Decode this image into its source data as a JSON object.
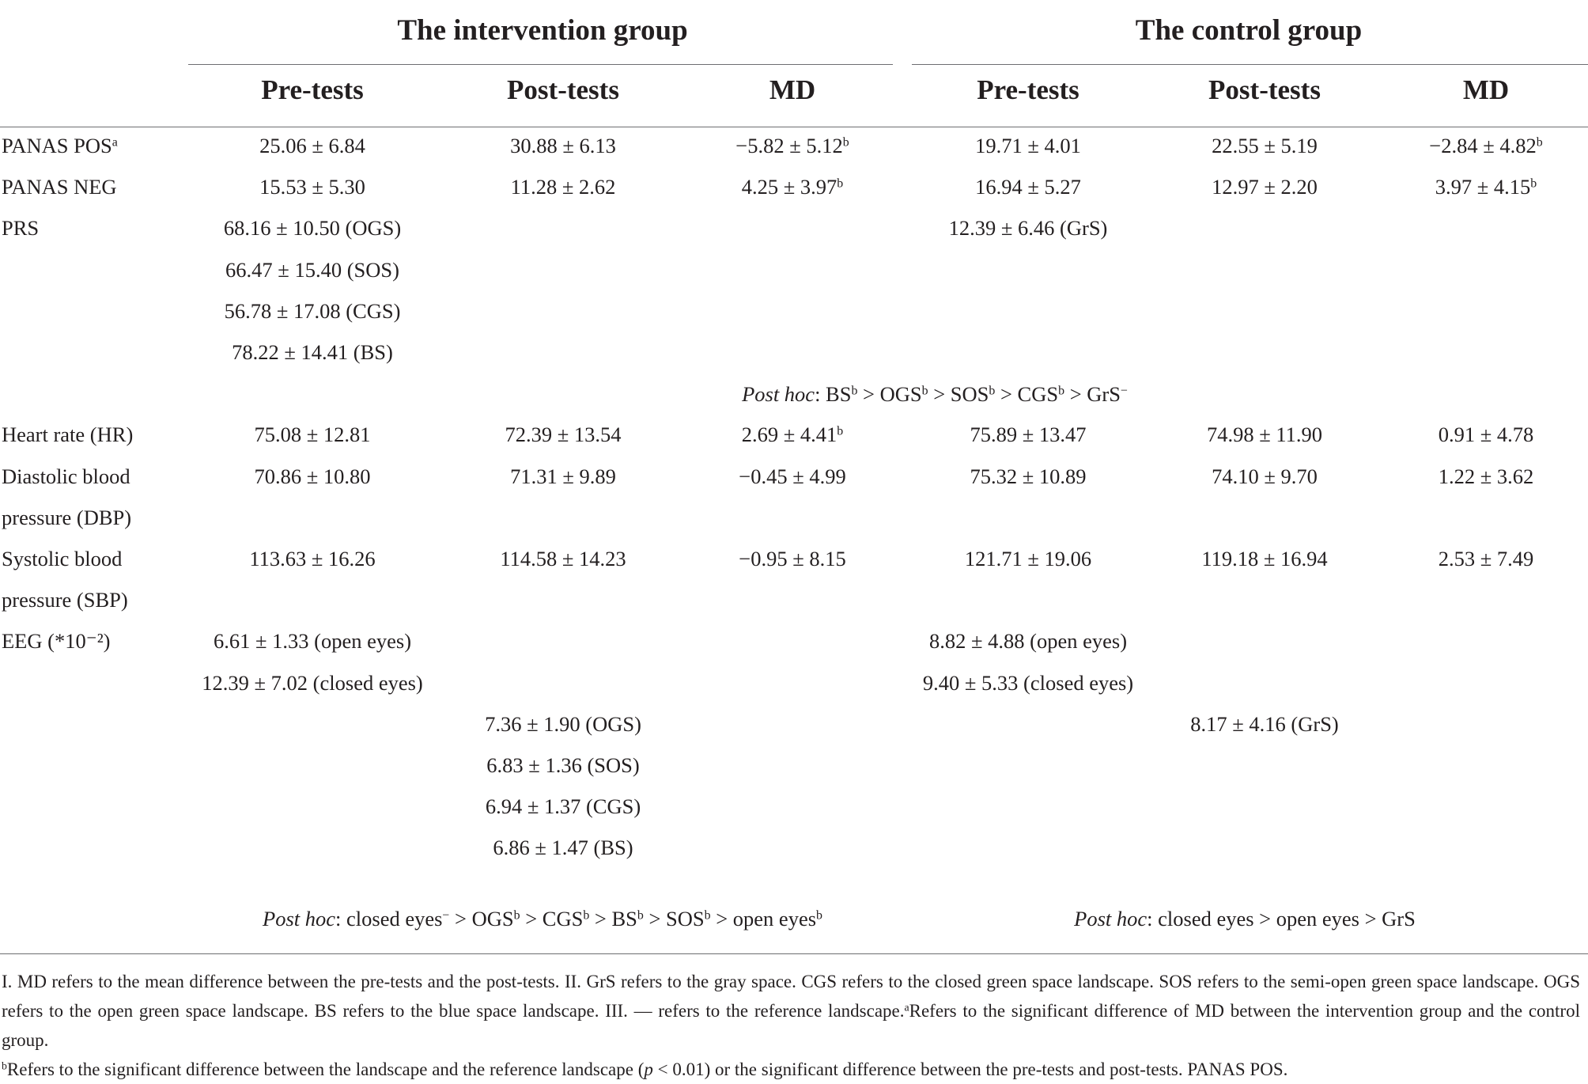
{
  "groups": {
    "intervention": "The intervention group",
    "control": "The control group"
  },
  "columns": {
    "pre": "Pre-tests",
    "post": "Post-tests",
    "md": "MD"
  },
  "rows": [
    {
      "label": "PANAS POS",
      "label_sup": "a",
      "ip": "25.06 ± 6.84",
      "io": "30.88 ± 6.13",
      "imd": "−5.82 ± 5.12",
      "imd_sup": "b",
      "cp": "19.71 ± 4.01",
      "co": "22.55 ± 5.19",
      "cmd": "−2.84 ± 4.82",
      "cmd_sup": "b"
    },
    {
      "label": "PANAS NEG",
      "ip": "15.53 ± 5.30",
      "io": "11.28 ± 2.62",
      "imd": "4.25 ± 3.97",
      "imd_sup": "b",
      "cp": "16.94 ± 5.27",
      "co": "12.97 ± 2.20",
      "cmd": "3.97 ± 4.15",
      "cmd_sup": "b"
    },
    {
      "label": "PRS",
      "ip": "68.16 ± 10.50 (OGS)",
      "cp": "12.39 ± 6.46 (GrS)"
    },
    {
      "ip": "66.47 ± 15.40 (SOS)"
    },
    {
      "ip": "56.78 ± 17.08 (CGS)"
    },
    {
      "ip": "78.22 ± 14.41 (BS)"
    },
    {
      "label": "Heart rate (HR)",
      "ip": "75.08 ± 12.81",
      "io": "72.39 ± 13.54",
      "imd": "2.69 ± 4.41",
      "imd_sup": "b",
      "cp": "75.89 ± 13.47",
      "co": "74.98 ± 11.90",
      "cmd": "0.91 ± 4.78"
    },
    {
      "label": "Diastolic blood",
      "ip": "70.86 ± 10.80",
      "io": "71.31 ± 9.89",
      "imd": "−0.45 ± 4.99",
      "cp": "75.32 ± 10.89",
      "co": "74.10 ± 9.70",
      "cmd": "1.22 ± 3.62"
    },
    {
      "label": "pressure (DBP)"
    },
    {
      "label": "Systolic blood",
      "ip": "113.63 ± 16.26",
      "io": "114.58 ± 14.23",
      "imd": "−0.95 ± 8.15",
      "cp": "121.71 ± 19.06",
      "co": "119.18 ± 16.94",
      "cmd": "2.53 ± 7.49"
    },
    {
      "label": "pressure (SBP)"
    },
    {
      "label": "EEG (*10⁻²)",
      "ip": "6.61 ± 1.33 (open eyes)",
      "cp": "8.82 ± 4.88 (open eyes)"
    },
    {
      "ip": "12.39 ± 7.02 (closed eyes)",
      "cp": "9.40 ± 5.33 (closed eyes)"
    },
    {
      "io": "7.36 ± 1.90 (OGS)",
      "co": "8.17 ± 4.16 (GrS)"
    },
    {
      "io": "6.83 ± 1.36 (SOS)"
    },
    {
      "io": "6.94 ± 1.37 (CGS)"
    },
    {
      "io": "6.86 ± 1.47 (BS)"
    }
  ],
  "posthoc_prs": {
    "lead": "Post hoc",
    "parts": [
      ": BS",
      "b",
      " > OGS",
      "b",
      " > SOS",
      "b",
      " > CGS",
      "b",
      " > GrS",
      "−"
    ]
  },
  "posthoc_eeg_intervention": {
    "lead": "Post hoc",
    "parts": [
      ": closed eyes",
      "−",
      " > OGS",
      "b",
      " > CGS",
      "b",
      " > BS",
      "b",
      " > SOS",
      "b",
      " > open eyes",
      "b"
    ]
  },
  "posthoc_eeg_control": {
    "lead": "Post hoc",
    "parts": [
      ": closed eyes > open eyes > GrS"
    ]
  },
  "notes": {
    "n1_text": "I. MD refers to the mean difference between the pre-tests and the post-tests. II. GrS refers to the gray space. CGS refers to the closed green space landscape. SOS refers to the semi-open green space landscape. OGS refers to the open green space landscape. BS refers to the blue space landscape. III. — refers to the reference landscape.",
    "n1_sup": "a",
    "n1_tail": "Refers to the significant difference of MD between the intervention group and the control group.",
    "n2_sup": "b",
    "n2_a": "Refers to the significant difference between the landscape and the reference landscape (",
    "n2_p": "p",
    "n2_b": " < 0.01) or the significant difference between the pre-tests and post-tests. PANAS POS."
  }
}
